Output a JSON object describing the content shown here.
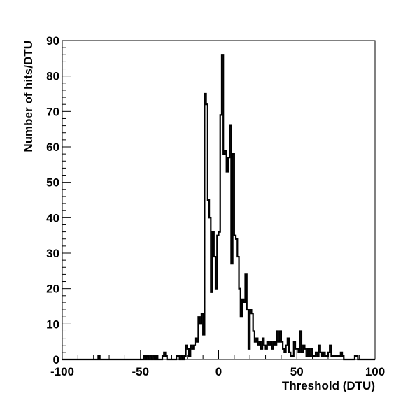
{
  "chart_data": {
    "type": "histogram",
    "title": "",
    "xlabel": "Threshold (DTU)",
    "ylabel": "Number of hits/DTU",
    "xlim": [
      -100,
      100
    ],
    "ylim": [
      0,
      90
    ],
    "x_ticks": [
      -100,
      -50,
      0,
      50,
      100
    ],
    "y_ticks": [
      0,
      10,
      20,
      30,
      40,
      50,
      60,
      70,
      80,
      90
    ],
    "grid": false,
    "legend": "none",
    "bin_width": 1,
    "colors": {
      "line": "#000000",
      "frame": "#000000",
      "background": "#ffffff"
    },
    "bins": [
      [
        -77,
        1
      ],
      [
        -48,
        1
      ],
      [
        -46,
        1
      ],
      [
        -44,
        1
      ],
      [
        -42,
        1
      ],
      [
        -40,
        1
      ],
      [
        -36,
        1
      ],
      [
        -35,
        2
      ],
      [
        -34,
        1
      ],
      [
        -27,
        1
      ],
      [
        -26,
        1
      ],
      [
        -24,
        1
      ],
      [
        -22,
        1
      ],
      [
        -21,
        4
      ],
      [
        -20,
        3
      ],
      [
        -19,
        1
      ],
      [
        -18,
        4
      ],
      [
        -17,
        3
      ],
      [
        -16,
        4
      ],
      [
        -15,
        6
      ],
      [
        -14,
        5
      ],
      [
        -13,
        12
      ],
      [
        -12,
        10
      ],
      [
        -11,
        13
      ],
      [
        -10,
        7
      ],
      [
        -9,
        75
      ],
      [
        -8,
        72
      ],
      [
        -7,
        45
      ],
      [
        -6,
        40
      ],
      [
        -5,
        19
      ],
      [
        -4,
        36
      ],
      [
        -3,
        29
      ],
      [
        -2,
        20
      ],
      [
        -1,
        35
      ],
      [
        0,
        36
      ],
      [
        1,
        69
      ],
      [
        2,
        86
      ],
      [
        3,
        58
      ],
      [
        4,
        59
      ],
      [
        5,
        53
      ],
      [
        6,
        57
      ],
      [
        7,
        66
      ],
      [
        8,
        27
      ],
      [
        9,
        58
      ],
      [
        10,
        35
      ],
      [
        11,
        34
      ],
      [
        12,
        29
      ],
      [
        13,
        20
      ],
      [
        14,
        12
      ],
      [
        15,
        17
      ],
      [
        16,
        16
      ],
      [
        17,
        24
      ],
      [
        18,
        14
      ],
      [
        19,
        3
      ],
      [
        20,
        14
      ],
      [
        21,
        13
      ],
      [
        22,
        8
      ],
      [
        23,
        5
      ],
      [
        24,
        6
      ],
      [
        25,
        4
      ],
      [
        26,
        5
      ],
      [
        27,
        3
      ],
      [
        28,
        6
      ],
      [
        29,
        4
      ],
      [
        30,
        3
      ],
      [
        31,
        5
      ],
      [
        32,
        4
      ],
      [
        33,
        5
      ],
      [
        34,
        3
      ],
      [
        35,
        5
      ],
      [
        36,
        4
      ],
      [
        37,
        8
      ],
      [
        38,
        5
      ],
      [
        39,
        8
      ],
      [
        40,
        5
      ],
      [
        41,
        3
      ],
      [
        42,
        2
      ],
      [
        43,
        4
      ],
      [
        44,
        6
      ],
      [
        45,
        2
      ],
      [
        46,
        1
      ],
      [
        47,
        1
      ],
      [
        48,
        5
      ],
      [
        49,
        3
      ],
      [
        50,
        3
      ],
      [
        51,
        2
      ],
      [
        52,
        8
      ],
      [
        53,
        2
      ],
      [
        54,
        4
      ],
      [
        55,
        3
      ],
      [
        56,
        1
      ],
      [
        57,
        3
      ],
      [
        58,
        1
      ],
      [
        59,
        3
      ],
      [
        60,
        1
      ],
      [
        61,
        1
      ],
      [
        62,
        2
      ],
      [
        63,
        1
      ],
      [
        64,
        4
      ],
      [
        65,
        2
      ],
      [
        66,
        1
      ],
      [
        67,
        2
      ],
      [
        68,
        1
      ],
      [
        69,
        1
      ],
      [
        70,
        2
      ],
      [
        71,
        4
      ],
      [
        72,
        1
      ],
      [
        73,
        1
      ],
      [
        74,
        1
      ],
      [
        75,
        1
      ],
      [
        76,
        1
      ],
      [
        77,
        1
      ],
      [
        78,
        2
      ],
      [
        79,
        1
      ],
      [
        87,
        1
      ],
      [
        88,
        1
      ]
    ]
  }
}
